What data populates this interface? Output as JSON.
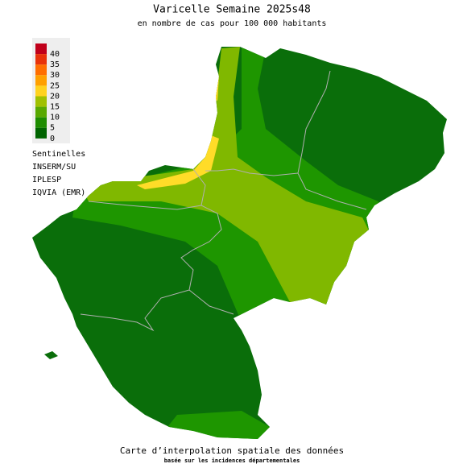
{
  "title": "Varicelle Semaine 2025s48",
  "subtitle": "en nombre de cas pour 100 000 habitants",
  "legend": [
    {
      "label": "40",
      "color": "#c0001a"
    },
    {
      "label": "35",
      "color": "#e8320a"
    },
    {
      "label": "30",
      "color": "#ff6e00"
    },
    {
      "label": "25",
      "color": "#ffa000"
    },
    {
      "label": "20",
      "color": "#ffd21e"
    },
    {
      "label": "15",
      "color": "#a0c000"
    },
    {
      "label": "10",
      "color": "#58a800"
    },
    {
      "label": "5",
      "color": "#1e8c00"
    },
    {
      "label": "0",
      "color": "#006400"
    }
  ],
  "sources": [
    "Sentinelles",
    "INSERM/SU",
    "IPLESP",
    "IQVIA (EMR)"
  ],
  "footer": {
    "line1": "Carte d’interpolation spatiale des données",
    "line2": "basée sur les incidences départementales"
  }
}
